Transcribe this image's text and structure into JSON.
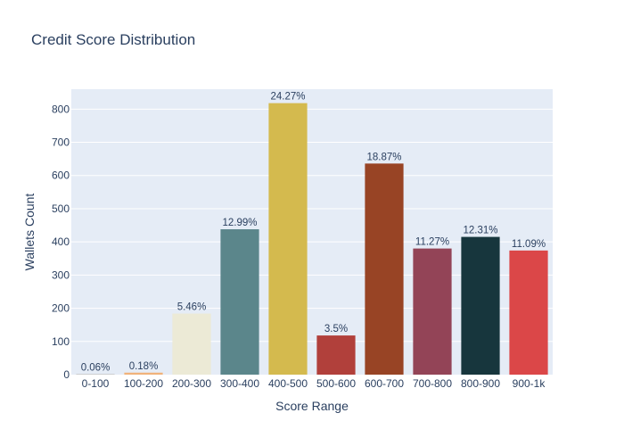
{
  "chart_data": {
    "type": "bar",
    "title": "Credit Score Distribution",
    "xlabel": "Score Range",
    "ylabel": "Wallets Count",
    "categories": [
      "0-100",
      "100-200",
      "200-300",
      "300-400",
      "400-500",
      "500-600",
      "600-700",
      "700-800",
      "800-900",
      "900-1k"
    ],
    "values": [
      2,
      6,
      184,
      438,
      818,
      118,
      636,
      380,
      415,
      374
    ],
    "data_labels": [
      "0.06%",
      "0.18%",
      "5.46%",
      "12.99%",
      "24.27%",
      "3.5%",
      "18.87%",
      "11.27%",
      "12.31%",
      "11.09%"
    ],
    "colors": [
      "#c5c5c5",
      "#f0b27a",
      "#ecead6",
      "#5b868b",
      "#d4ba4e",
      "#b1403b",
      "#984425",
      "#934457",
      "#17363d",
      "#db4748"
    ],
    "ylim": [
      0,
      860
    ],
    "yticks": [
      0,
      100,
      200,
      300,
      400,
      500,
      600,
      700,
      800
    ],
    "grid": true,
    "legend": "none",
    "plot_background": "#e5ecf6"
  }
}
